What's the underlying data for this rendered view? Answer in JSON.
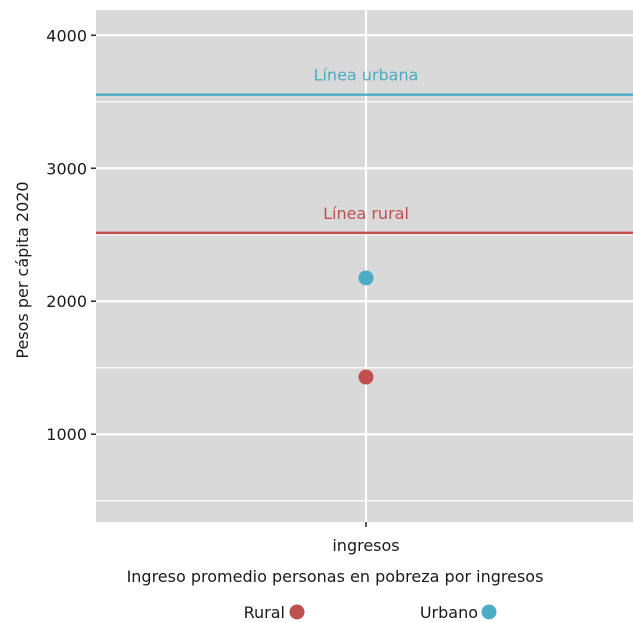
{
  "chart_data": {
    "type": "scatter",
    "categories": [
      "ingresos"
    ],
    "series": [
      {
        "name": "Rural",
        "values": [
          1430
        ],
        "color": "#c0504d"
      },
      {
        "name": "Urbano",
        "values": [
          2175
        ],
        "color": "#4bacc6"
      }
    ],
    "reference_lines": [
      {
        "label": "Línea urbana",
        "value": 3553,
        "color": "#4bacc6"
      },
      {
        "label": "Línea rural",
        "value": 2514,
        "color": "#c0504d"
      }
    ],
    "xlabel": "Ingreso promedio personas en pobreza por ingresos",
    "ylabel": "Pesos per cápita 2020",
    "ylim": [
      340,
      4190
    ],
    "yticks": [
      1000,
      2000,
      3000,
      4000
    ],
    "ytick_labels": [
      "1000",
      "2000",
      "3000",
      "4000"
    ],
    "panel_color": "#d9d9d9",
    "grid": true,
    "legend_position": "bottom"
  }
}
